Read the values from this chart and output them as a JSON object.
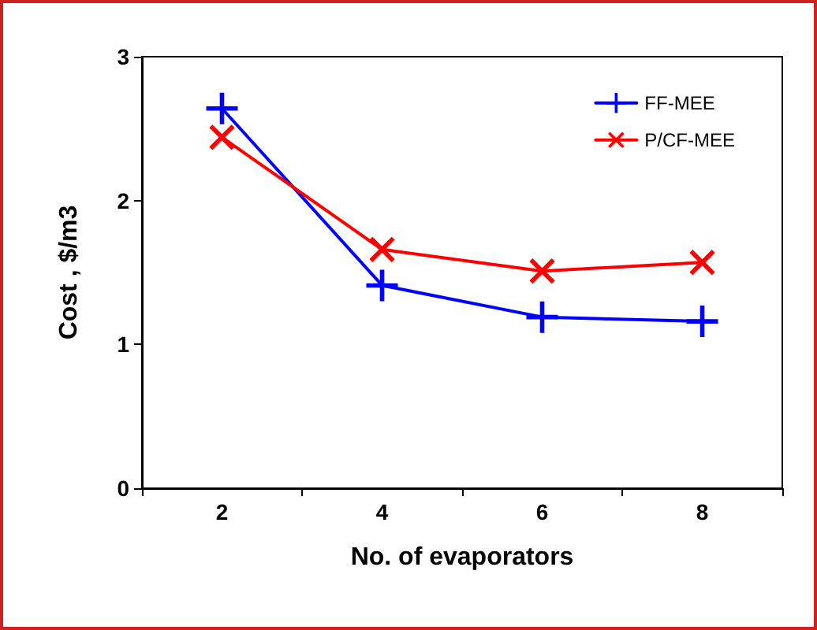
{
  "chart_data": {
    "type": "line",
    "xlabel": "No. of evaporators",
    "ylabel": "Cost , $/m3",
    "categories": [
      "2",
      "4",
      "6",
      "8"
    ],
    "series": [
      {
        "name": "FF-MEE",
        "color": "#0000ff",
        "values": [
          2.64,
          1.41,
          1.19,
          1.16
        ]
      },
      {
        "name": "P/CF-MEE",
        "color": "#ff0000",
        "values": [
          2.44,
          1.66,
          1.51,
          1.57
        ]
      }
    ],
    "ylim": [
      0,
      3
    ],
    "yticks": [
      0,
      1,
      2,
      3
    ],
    "grid": false,
    "legend": "top right",
    "marker": "cross",
    "line_style": "solid"
  }
}
